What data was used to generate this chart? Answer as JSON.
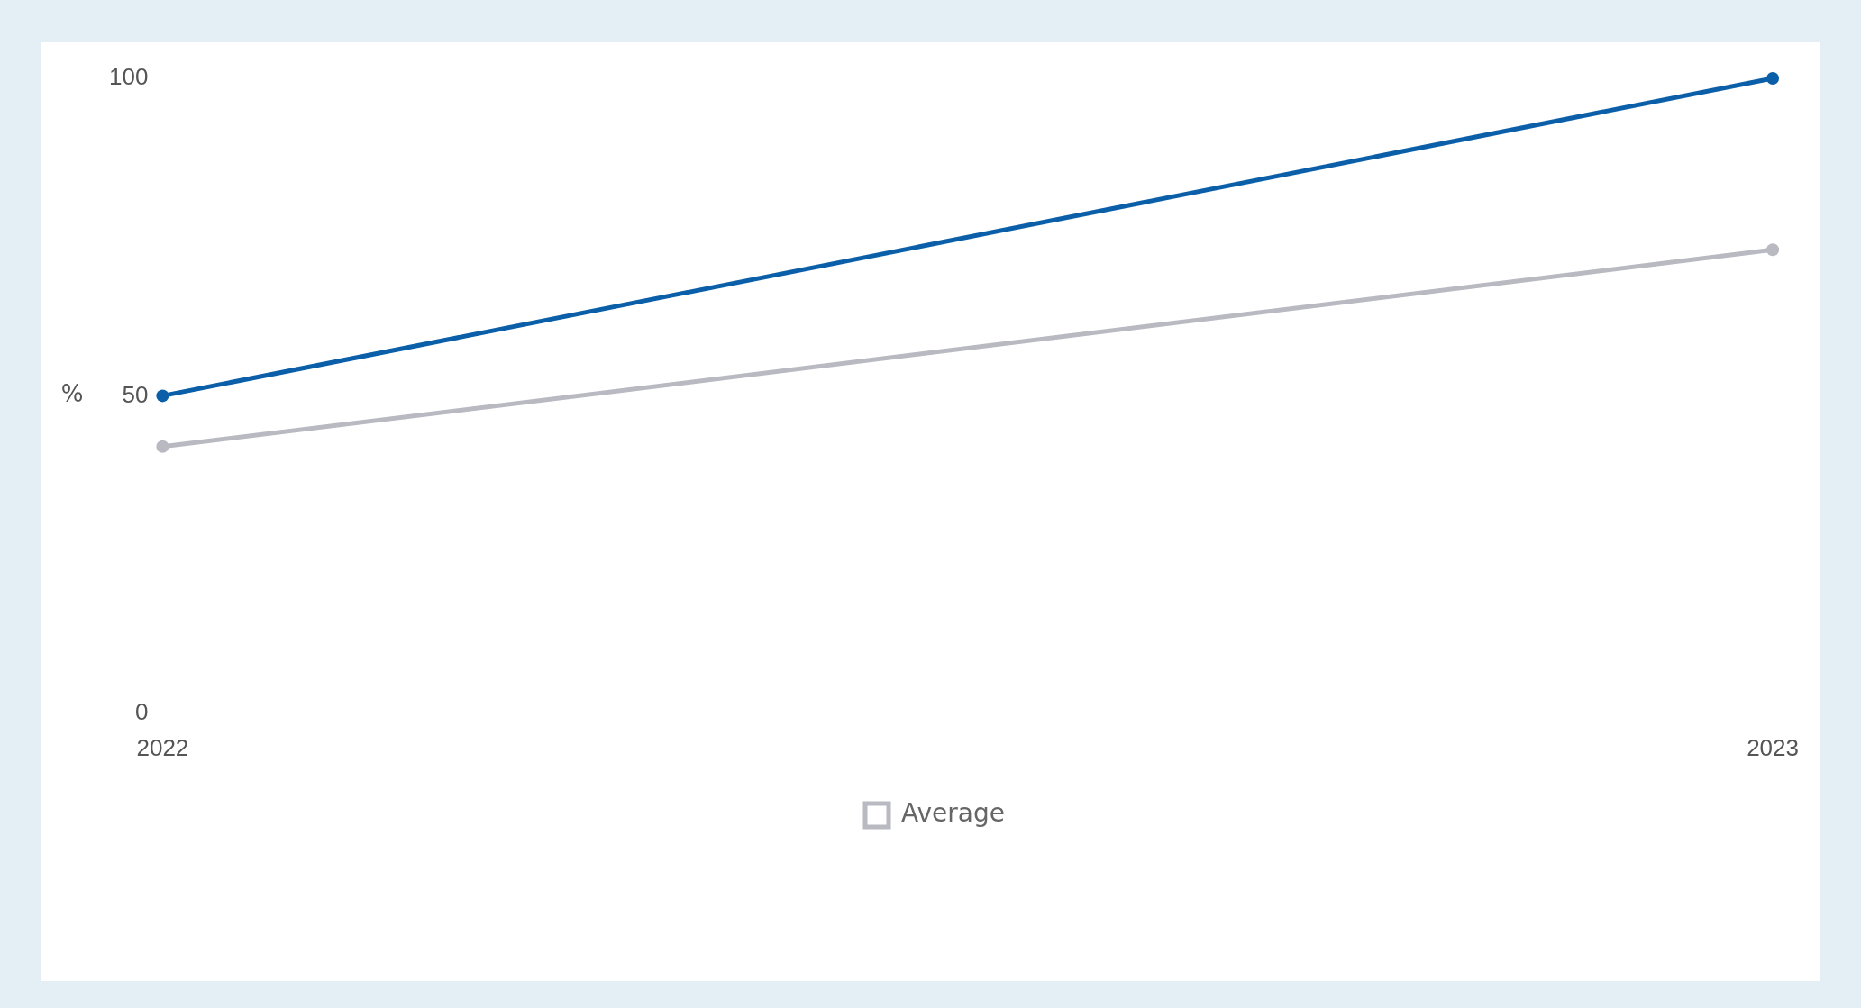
{
  "chart_data": {
    "type": "line",
    "ylabel": "%",
    "categories": [
      "2022",
      "2023"
    ],
    "series": [
      {
        "color": "#0a5fa8",
        "values": [
          50,
          100
        ]
      },
      {
        "name": "Average",
        "color": "#b8b9c1",
        "values": [
          42,
          73
        ]
      }
    ],
    "ylim": [
      0,
      100
    ],
    "yticks": [
      0,
      50,
      100
    ],
    "grid": false,
    "legend": "bottom",
    "marker": "circle",
    "line_style": "solid"
  }
}
